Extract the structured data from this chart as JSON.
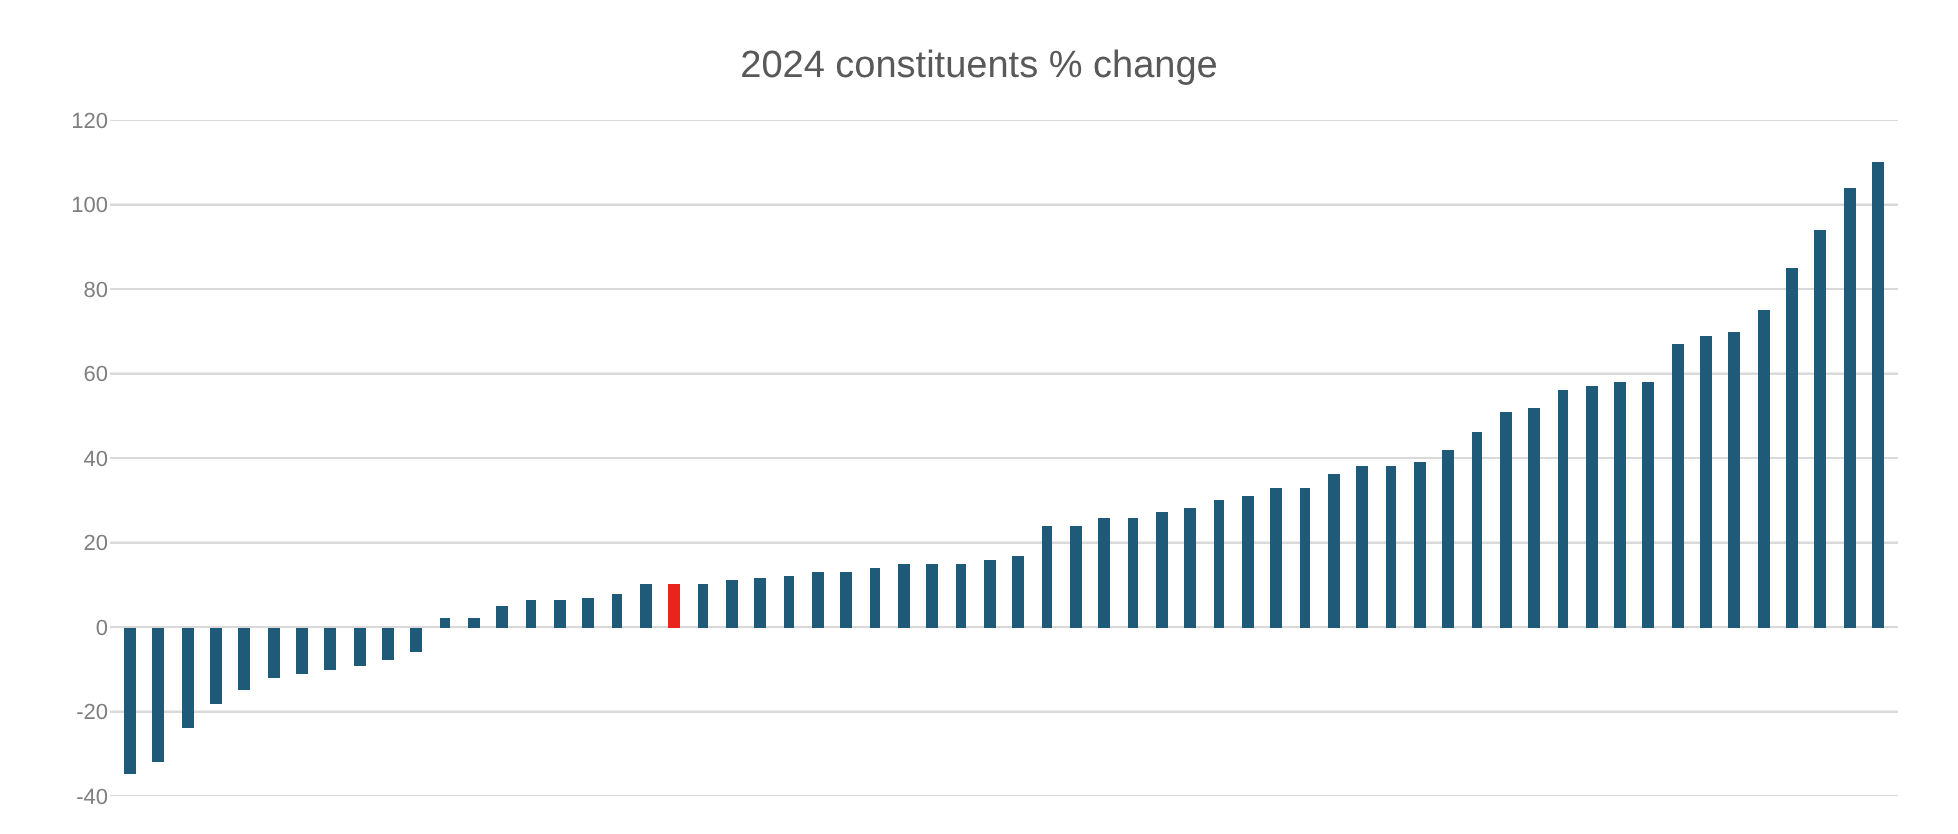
{
  "chart_data": {
    "type": "bar",
    "title": "2024 constituents % change",
    "categories": [
      null,
      null,
      null,
      null,
      null,
      null,
      null,
      null,
      null,
      null,
      null,
      null,
      null,
      null,
      null,
      null,
      null,
      null,
      null,
      null,
      null,
      null,
      null,
      null,
      null,
      null,
      null,
      null,
      null,
      null,
      null,
      null,
      null,
      null,
      null,
      null,
      null,
      null,
      null,
      null,
      null,
      null,
      null,
      null,
      null,
      null,
      null,
      null,
      null,
      null,
      null,
      null,
      null,
      null,
      null,
      null,
      null,
      null,
      null,
      null,
      null,
      null
    ],
    "values": [
      -35,
      -32,
      -24,
      -18,
      -15,
      -12,
      -11,
      -10,
      -9,
      -8,
      -6,
      2,
      2,
      5,
      6.5,
      6.5,
      7,
      8,
      10,
      10,
      10,
      11,
      11.5,
      12,
      13,
      13,
      14,
      15,
      15,
      15,
      16,
      17,
      24,
      24,
      26,
      26,
      27,
      28,
      30,
      31,
      33,
      33,
      36,
      38,
      38,
      39,
      42,
      46,
      51,
      52,
      56,
      57,
      58,
      58,
      67,
      69,
      70,
      75,
      85,
      94,
      104,
      110
    ],
    "colors": [
      "#1f5a78",
      "#1f5a78",
      "#1f5a78",
      "#1f5a78",
      "#1f5a78",
      "#1f5a78",
      "#1f5a78",
      "#1f5a78",
      "#1f5a78",
      "#1f5a78",
      "#1f5a78",
      "#1f5a78",
      "#1f5a78",
      "#1f5a78",
      "#1f5a78",
      "#1f5a78",
      "#1f5a78",
      "#1f5a78",
      "#1f5a78",
      "#e8241c",
      "#1f5a78",
      "#1f5a78",
      "#1f5a78",
      "#1f5a78",
      "#1f5a78",
      "#1f5a78",
      "#1f5a78",
      "#1f5a78",
      "#1f5a78",
      "#1f5a78",
      "#1f5a78",
      "#1f5a78",
      "#1f5a78",
      "#1f5a78",
      "#1f5a78",
      "#1f5a78",
      "#1f5a78",
      "#1f5a78",
      "#1f5a78",
      "#1f5a78",
      "#1f5a78",
      "#1f5a78",
      "#1f5a78",
      "#1f5a78",
      "#1f5a78",
      "#1f5a78",
      "#1f5a78",
      "#1f5a78",
      "#1f5a78",
      "#1f5a78",
      "#1f5a78",
      "#1f5a78",
      "#1f5a78",
      "#1f5a78",
      "#1f5a78",
      "#1f5a78",
      "#1f5a78",
      "#1f5a78",
      "#1f5a78",
      "#1f5a78",
      "#1f5a78",
      "#1f5a78"
    ],
    "ylim": [
      -40,
      120
    ],
    "yticks": [
      -40,
      -20,
      0,
      20,
      40,
      60,
      80,
      100,
      120
    ],
    "grid": "y",
    "tick_labels": "y"
  }
}
